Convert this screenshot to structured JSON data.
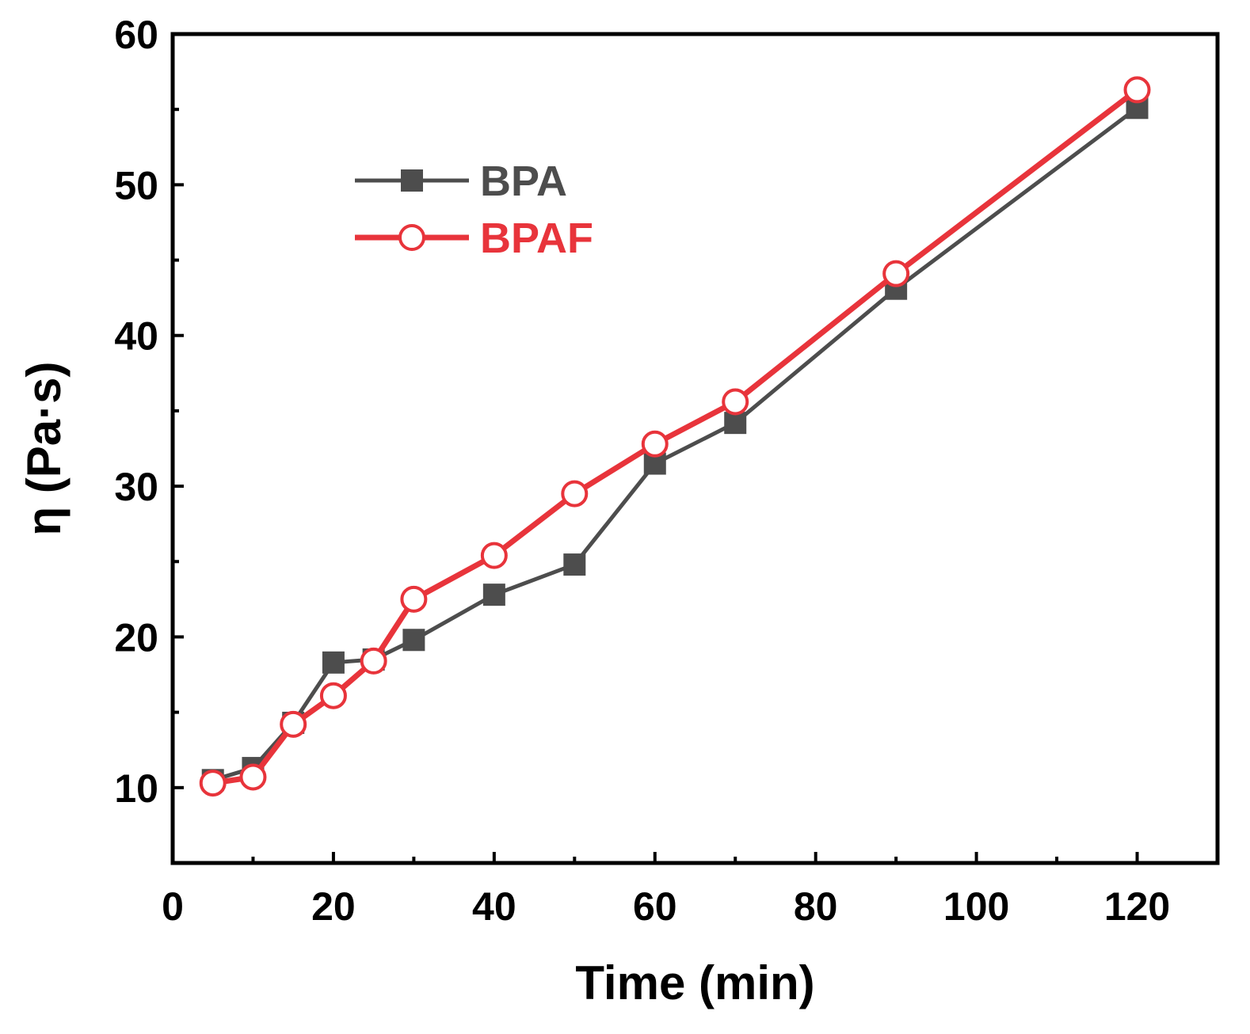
{
  "chart_data": {
    "type": "line",
    "title": "",
    "xlabel": "Time (min)",
    "ylabel": "η (Pa·s)",
    "xlim": [
      0,
      130
    ],
    "ylim": [
      5,
      60
    ],
    "xticks": [
      0,
      20,
      40,
      60,
      80,
      100,
      120
    ],
    "xtick_labels": [
      "0",
      "20",
      "40",
      "60",
      "80",
      "100",
      "120"
    ],
    "yticks": [
      10,
      20,
      30,
      40,
      50,
      60
    ],
    "ytick_labels": [
      "10",
      "20",
      "30",
      "40",
      "50",
      "60"
    ],
    "x_minor_step": 10,
    "y_minor_step": 5,
    "grid": false,
    "legend_position": "top-left",
    "series": [
      {
        "name": "BPA",
        "color": "#4d4d4d",
        "marker": "filled-square",
        "x": [
          5,
          10,
          15,
          20,
          25,
          30,
          40,
          50,
          60,
          70,
          90,
          120
        ],
        "values": [
          10.5,
          11.3,
          14.3,
          18.3,
          18.5,
          19.8,
          22.8,
          24.8,
          31.5,
          34.2,
          43.1,
          55.1
        ]
      },
      {
        "name": "BPAF",
        "color": "#e8343b",
        "marker": "open-circle",
        "x": [
          5,
          10,
          15,
          20,
          25,
          30,
          40,
          50,
          60,
          70,
          90,
          120
        ],
        "values": [
          10.3,
          10.7,
          14.2,
          16.1,
          18.4,
          22.5,
          25.4,
          29.5,
          32.8,
          35.6,
          44.1,
          56.3
        ]
      }
    ]
  }
}
